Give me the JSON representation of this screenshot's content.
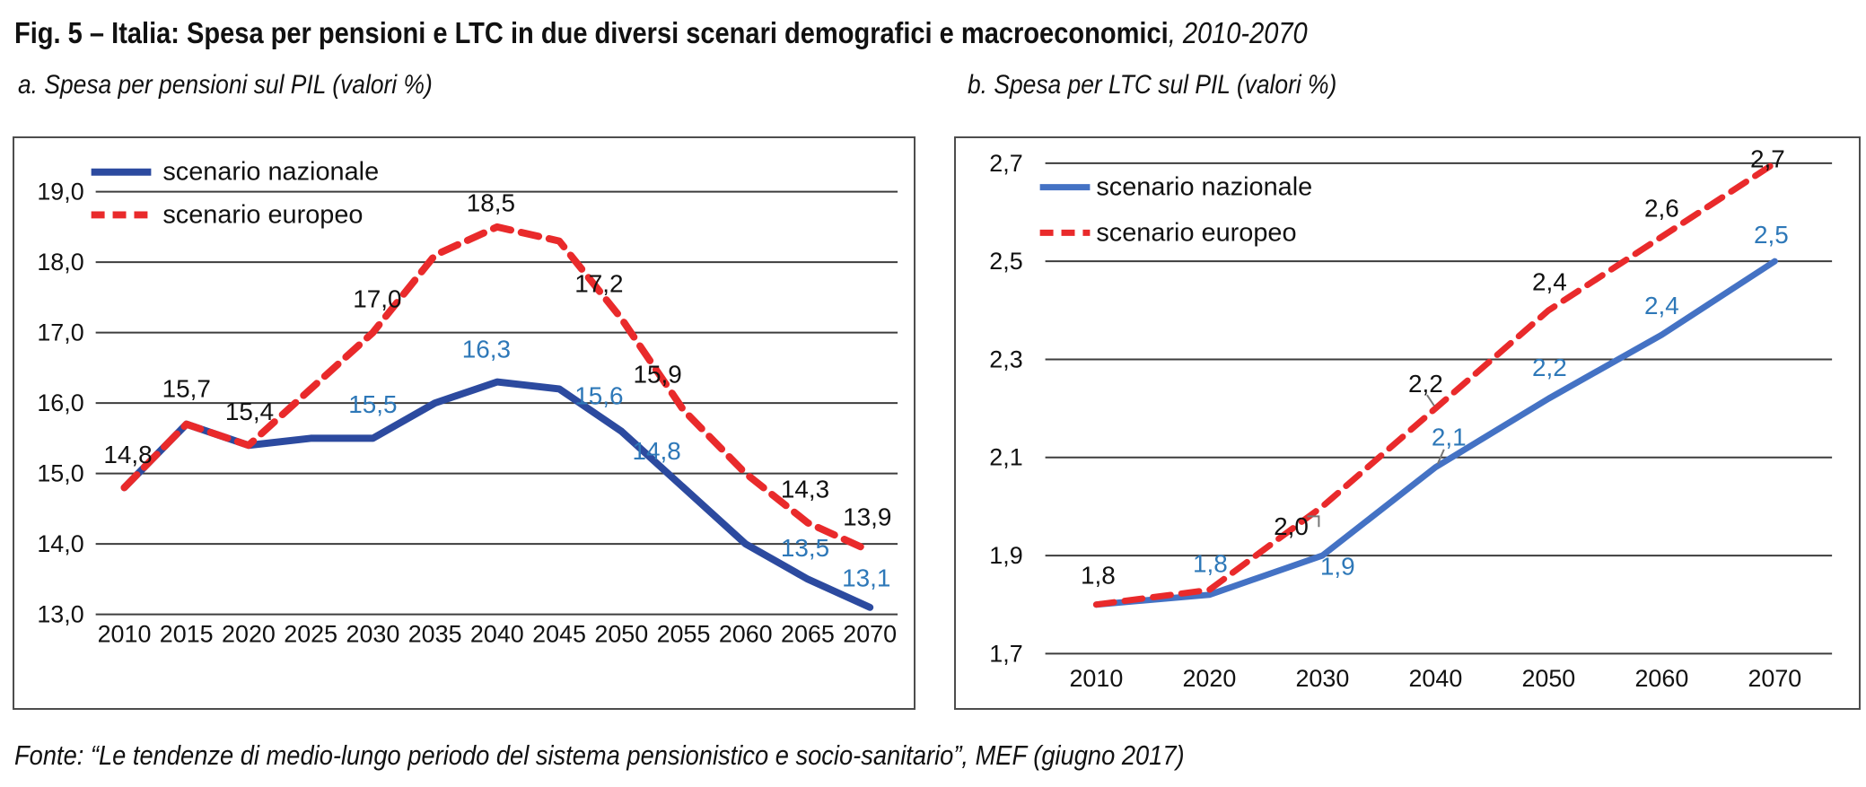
{
  "figure": {
    "title_bold": "Fig. 5 – Italia: Spesa per pensioni e LTC in due diversi scenari demografici e macroeconomici",
    "title_italic": ", 2010-2070",
    "source": "Fonte: “Le tendenze di medio-lungo periodo del sistema pensionistico e socio-sanitario”, MEF (giugno 2017)"
  },
  "colors": {
    "line_blue_a": "#2c4a9f",
    "line_blue_b": "#4472c4",
    "line_red": "#e92a2b",
    "label_blue": "#2e78b8",
    "text": "#111111",
    "grid": "#3d3d3d",
    "border": "#4d4d4d",
    "leader": "#777777"
  },
  "chart_data": [
    {
      "id": "pensioni",
      "type": "line",
      "title": "a. Spesa per pensioni sul PIL (valori %)",
      "categories": [
        "2010",
        "2015",
        "2020",
        "2025",
        "2030",
        "2035",
        "2040",
        "2045",
        "2050",
        "2055",
        "2060",
        "2065",
        "2070"
      ],
      "ylim": [
        13.0,
        19.0
      ],
      "ytick_step": 1.0,
      "ytick_labels": [
        "19,0",
        "18,0",
        "17,0",
        "16,0",
        "15,0",
        "14,0",
        "13,0"
      ],
      "grid": true,
      "legend_position": "top-left",
      "series": [
        {
          "name": "scenario nazionale",
          "style": "solid",
          "color_key": "line_blue_a",
          "label_color_key": "label_blue",
          "values": [
            14.8,
            15.7,
            15.4,
            15.5,
            15.5,
            16.0,
            16.3,
            16.2,
            15.6,
            14.8,
            14.0,
            13.5,
            13.1
          ],
          "labels": [
            {
              "i": 4,
              "text": "15,5",
              "dx": 0,
              "dy": -38
            },
            {
              "i": 6,
              "text": "16,3",
              "dx": -12,
              "dy": -37
            },
            {
              "i": 8,
              "text": "15,6",
              "dx": -25,
              "dy": -40
            },
            {
              "i": 9,
              "text": "14,8",
              "dx": -30,
              "dy": -41
            },
            {
              "i": 11,
              "text": "13,5",
              "dx": -3,
              "dy": -35
            },
            {
              "i": 12,
              "text": "13,1",
              "dx": -4,
              "dy": -33
            }
          ]
        },
        {
          "name": "scenario europeo",
          "style": "dashed",
          "color_key": "line_red",
          "label_color_key": "text",
          "values": [
            14.8,
            15.7,
            15.4,
            16.2,
            17.0,
            18.1,
            18.5,
            18.3,
            17.2,
            15.9,
            15.0,
            14.3,
            13.9
          ],
          "labels": [
            {
              "i": 0,
              "text": "14,8",
              "dx": 4,
              "dy": -37
            },
            {
              "i": 1,
              "text": "15,7",
              "dx": 0,
              "dy": -40
            },
            {
              "i": 2,
              "text": "15,4",
              "dx": 1,
              "dy": -38
            },
            {
              "i": 4,
              "text": "17,0",
              "dx": 5,
              "dy": -38
            },
            {
              "i": 6,
              "text": "18,5",
              "dx": -7,
              "dy": -27
            },
            {
              "i": 8,
              "text": "17,2",
              "dx": -25,
              "dy": -39
            },
            {
              "i": 9,
              "text": "15,9",
              "dx": -29,
              "dy": -40
            },
            {
              "i": 11,
              "text": "14,3",
              "dx": -3,
              "dy": -38
            },
            {
              "i": 12,
              "text": "13,9",
              "dx": -3,
              "dy": -38
            }
          ]
        }
      ]
    },
    {
      "id": "ltc",
      "type": "line",
      "title": "b. Spesa per LTC sul PIL (valori %)",
      "categories": [
        "2010",
        "2020",
        "2030",
        "2040",
        "2050",
        "2060",
        "2070"
      ],
      "ylim": [
        1.7,
        2.7
      ],
      "ytick_step": 0.2,
      "ytick_labels": [
        "2,7",
        "2,5",
        "2,3",
        "2,1",
        "1,9",
        "1,7"
      ],
      "grid": true,
      "legend_position": "top-left",
      "series": [
        {
          "name": "scenario nazionale",
          "style": "solid",
          "color_key": "line_blue_b",
          "label_color_key": "label_blue",
          "values": [
            1.8,
            1.8,
            1.9,
            2.1,
            2.2,
            2.4,
            2.5
          ],
          "plot_values": [
            1.8,
            1.82,
            1.9,
            2.08,
            2.22,
            2.35,
            2.5
          ],
          "labels": [
            {
              "i": 1,
              "text": "1,8",
              "dx": 1,
              "dy": -35
            },
            {
              "i": 2,
              "text": "1,9",
              "dx": 17,
              "dy": 12
            },
            {
              "i": 3,
              "text": "2,1",
              "dx": 15,
              "dy": -34,
              "leader": [
                [
                  546,
                  349
                ],
                [
                  539,
                  365
                ]
              ]
            },
            {
              "i": 4,
              "text": "2,2",
              "dx": 1,
              "dy": -35
            },
            {
              "i": 5,
              "text": "2,4",
              "dx": 0,
              "dy": -33
            },
            {
              "i": 6,
              "text": "2,5",
              "dx": -4,
              "dy": -30
            }
          ]
        },
        {
          "name": "scenario europeo",
          "style": "dashed",
          "color_key": "line_red",
          "label_color_key": "text",
          "values": [
            1.8,
            1.8,
            2.0,
            2.2,
            2.4,
            2.6,
            2.7
          ],
          "plot_values": [
            1.8,
            1.83,
            2.0,
            2.2,
            2.4,
            2.55,
            2.7
          ],
          "labels": [
            {
              "i": 0,
              "text": "1,8",
              "dx": 2,
              "dy": -33
            },
            {
              "i": 2,
              "text": "2,0",
              "dx": -35,
              "dy": 22,
              "leader": [
                [
                  393,
                  424
                ],
                [
                  406,
                  424
                ],
                [
                  406,
                  436
                ]
              ]
            },
            {
              "i": 3,
              "text": "2,2",
              "dx": -11,
              "dy": -28,
              "leader": [
                [
                  527,
                  288
                ],
                [
                  535,
                  300
                ]
              ]
            },
            {
              "i": 4,
              "text": "2,4",
              "dx": 1,
              "dy": -32
            },
            {
              "i": 5,
              "text": "2,6",
              "dx": 0,
              "dy": -32
            },
            {
              "i": 6,
              "text": "2,7",
              "dx": -8,
              "dy": -5
            }
          ]
        }
      ]
    }
  ]
}
